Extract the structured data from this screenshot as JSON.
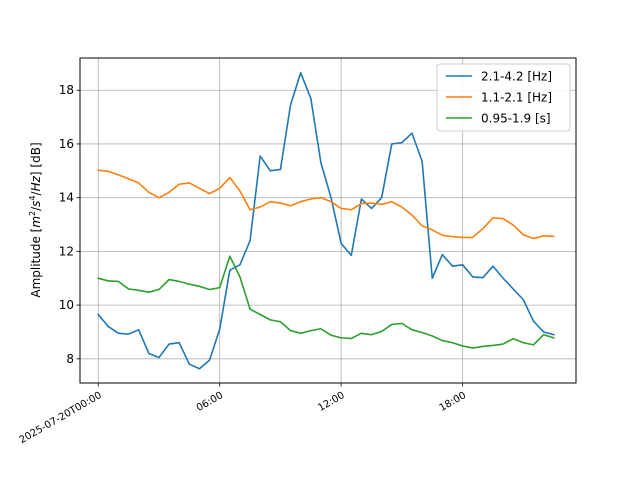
{
  "chart_data": {
    "type": "line",
    "ylabel_parts": [
      "Amplitude [",
      "m",
      "2",
      "/",
      "s",
      "4",
      "/",
      "Hz",
      "] [dB]"
    ],
    "ylim": [
      7.1,
      19.2
    ],
    "yticks": [
      8,
      10,
      12,
      14,
      16,
      18
    ],
    "xlim_hours": [
      -0.9,
      23.6
    ],
    "xticks": [
      {
        "hour": 0,
        "label": "2025-07-20T00:00"
      },
      {
        "hour": 6,
        "label": "06:00"
      },
      {
        "hour": 12,
        "label": "12:00"
      },
      {
        "hour": 18,
        "label": "18:00"
      }
    ],
    "grid": true,
    "legend_position": "top-right",
    "x_hours": [
      0,
      0.5,
      1,
      1.5,
      2,
      2.5,
      3,
      3.5,
      4,
      4.5,
      5,
      5.5,
      6,
      6.5,
      7,
      7.5,
      8,
      8.5,
      9,
      9.5,
      10,
      10.5,
      11,
      11.5,
      12,
      12.5,
      13,
      13.5,
      14,
      14.5,
      15,
      15.5,
      16,
      16.5,
      17,
      17.5,
      18,
      18.5,
      19,
      19.5,
      20,
      20.5,
      21,
      21.5,
      22,
      22.5
    ],
    "series": [
      {
        "name": "2.1-4.2 [Hz]",
        "color": "#1f77b4",
        "values": [
          9.65,
          9.2,
          8.95,
          8.92,
          9.08,
          8.2,
          8.05,
          8.55,
          8.6,
          7.8,
          7.63,
          7.95,
          9.1,
          11.3,
          11.5,
          12.4,
          15.55,
          15.0,
          15.05,
          17.45,
          18.65,
          17.7,
          15.3,
          14.0,
          12.3,
          11.85,
          13.95,
          13.6,
          14.0,
          16.0,
          16.05,
          16.4,
          15.35,
          11.0,
          11.88,
          11.45,
          11.5,
          11.05,
          11.02,
          11.45,
          11.0,
          10.6,
          10.2,
          9.4,
          9.0,
          8.9
        ]
      },
      {
        "name": "1.1-2.1 [Hz]",
        "color": "#ff7f0e",
        "values": [
          15.02,
          14.98,
          14.85,
          14.7,
          14.55,
          14.2,
          14.0,
          14.2,
          14.5,
          14.55,
          14.35,
          14.15,
          14.35,
          14.75,
          14.25,
          13.55,
          13.65,
          13.85,
          13.8,
          13.7,
          13.85,
          13.95,
          14.0,
          13.85,
          13.6,
          13.55,
          13.78,
          13.8,
          13.75,
          13.85,
          13.65,
          13.35,
          12.95,
          12.8,
          12.6,
          12.55,
          12.52,
          12.52,
          12.85,
          13.25,
          13.22,
          12.98,
          12.62,
          12.48,
          12.58,
          12.56
        ]
      },
      {
        "name": "0.95-1.9 [s]",
        "color": "#2ca02c",
        "values": [
          11.0,
          10.9,
          10.88,
          10.6,
          10.55,
          10.48,
          10.58,
          10.95,
          10.88,
          10.78,
          10.7,
          10.58,
          10.65,
          11.82,
          11.05,
          9.85,
          9.65,
          9.45,
          9.38,
          9.05,
          8.95,
          9.05,
          9.12,
          8.88,
          8.78,
          8.76,
          8.95,
          8.9,
          9.02,
          9.28,
          9.32,
          9.08,
          8.98,
          8.85,
          8.68,
          8.6,
          8.48,
          8.4,
          8.46,
          8.5,
          8.55,
          8.75,
          8.6,
          8.52,
          8.9,
          8.78
        ]
      }
    ]
  }
}
